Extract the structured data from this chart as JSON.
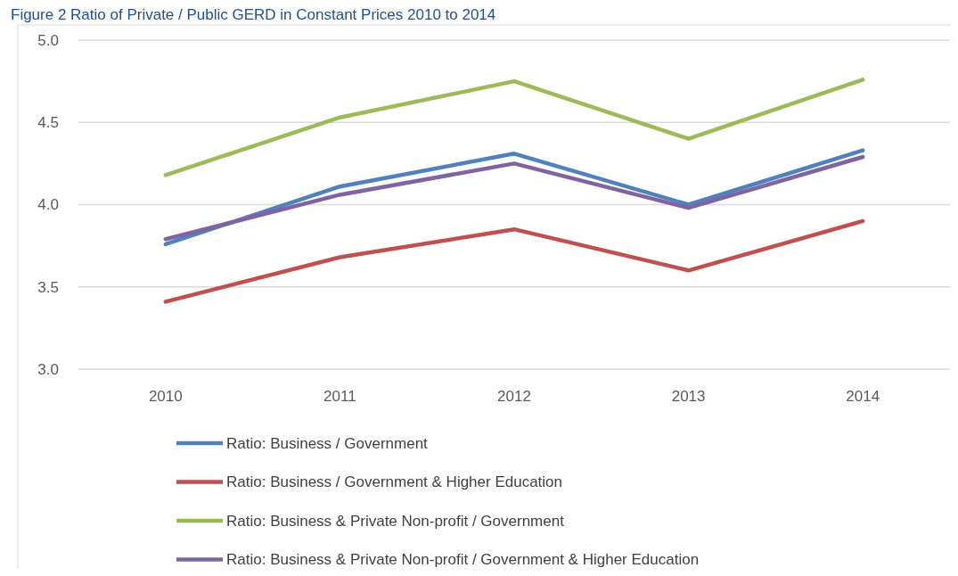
{
  "chart_data": {
    "type": "line",
    "title": "Figure 2 Ratio of Private / Public GERD in Constant Prices 2010 to 2014",
    "categories": [
      "2010",
      "2011",
      "2012",
      "2013",
      "2014"
    ],
    "series": [
      {
        "name": "Ratio: Business / Government",
        "color": "#4f81bd",
        "values": [
          3.76,
          4.11,
          4.31,
          4.0,
          4.33
        ]
      },
      {
        "name": "Ratio: Business / Government & Higher Education",
        "color": "#c0504d",
        "values": [
          3.41,
          3.68,
          3.85,
          3.6,
          3.9
        ]
      },
      {
        "name": "Ratio: Business & Private Non-profit / Government",
        "color": "#9bbb59",
        "values": [
          4.18,
          4.53,
          4.75,
          4.4,
          4.76
        ]
      },
      {
        "name": "Ratio: Business & Private Non-profit / Government & Higher Education",
        "color": "#8064a2",
        "values": [
          3.79,
          4.06,
          4.25,
          3.98,
          4.29
        ]
      }
    ],
    "ylim": [
      3,
      5
    ],
    "yticks": [
      {
        "value": 3,
        "label": "3.0"
      },
      {
        "value": 3.5,
        "label": "3.5"
      },
      {
        "value": 4,
        "label": "4.0"
      },
      {
        "value": 4.5,
        "label": "4.5"
      },
      {
        "value": 5,
        "label": "5.0"
      }
    ],
    "grid": "y",
    "legend": "bottom",
    "marker": "none",
    "line_style": "solid"
  }
}
